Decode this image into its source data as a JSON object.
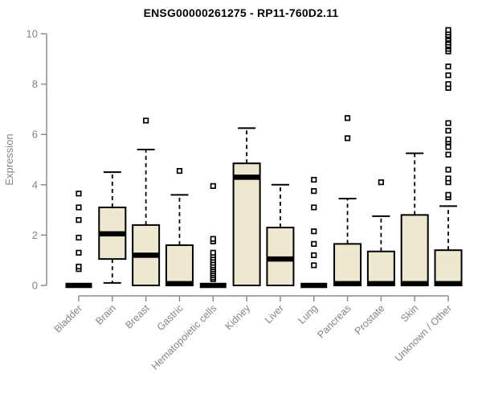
{
  "title": "ENSG00000261275 - RP11-760D2.11",
  "colors": {
    "box_fill": "#EDE8D0",
    "box_stroke": "#000000",
    "median": "#000000",
    "axis": "#8C8C8C",
    "axis_text": "#848484",
    "background": "#FFFFFF"
  },
  "chart_data": {
    "type": "boxplot",
    "title": "ENSG00000261275 - RP11-760D2.11",
    "xlabel": "",
    "ylabel": "Expression",
    "ylim": [
      0,
      10
    ],
    "yticks": [
      0,
      2,
      4,
      6,
      8,
      10
    ],
    "grid": "off",
    "legend": "none",
    "categories": [
      "Bladder",
      "Brain",
      "Breast",
      "Gastric",
      "Hematopoietic cells",
      "Kidney",
      "Liver",
      "Lung",
      "Pancreas",
      "Prostate",
      "Skin",
      "Unknown / Other"
    ],
    "boxes": [
      {
        "category": "Bladder",
        "whisker_low": 0,
        "q1": 0,
        "median": 0,
        "q3": 0,
        "whisker_high": 0,
        "outliers": [
          0.65,
          0.75,
          1.3,
          1.9,
          2.6,
          3.1,
          3.65
        ]
      },
      {
        "category": "Brain",
        "whisker_low": 0.1,
        "q1": 1.05,
        "median": 2.05,
        "q3": 3.1,
        "whisker_high": 4.5,
        "outliers": []
      },
      {
        "category": "Breast",
        "whisker_low": 0,
        "q1": 0,
        "median": 1.2,
        "q3": 2.4,
        "whisker_high": 5.4,
        "outliers": [
          6.55
        ]
      },
      {
        "category": "Gastric",
        "whisker_low": 0,
        "q1": 0,
        "median": 0.07,
        "q3": 1.6,
        "whisker_high": 3.6,
        "outliers": [
          4.55
        ]
      },
      {
        "category": "Hematopoietic cells",
        "whisker_low": 0,
        "q1": 0,
        "median": 0,
        "q3": 0,
        "whisker_high": 0,
        "outliers": [
          0.25,
          0.32,
          0.4,
          0.48,
          0.56,
          0.64,
          0.72,
          0.8,
          0.9,
          1.0,
          1.1,
          1.2,
          1.3,
          1.75,
          1.85,
          3.95
        ]
      },
      {
        "category": "Kidney",
        "whisker_low": 0,
        "q1": 0,
        "median": 4.3,
        "q3": 4.85,
        "whisker_high": 6.25,
        "outliers": []
      },
      {
        "category": "Liver",
        "whisker_low": 0,
        "q1": 0,
        "median": 1.05,
        "q3": 2.3,
        "whisker_high": 4.0,
        "outliers": []
      },
      {
        "category": "Lung",
        "whisker_low": 0,
        "q1": 0,
        "median": 0,
        "q3": 0,
        "whisker_high": 0,
        "outliers": [
          0.8,
          1.2,
          1.65,
          2.15,
          3.1,
          3.75,
          4.2
        ]
      },
      {
        "category": "Pancreas",
        "whisker_low": 0,
        "q1": 0,
        "median": 0.07,
        "q3": 1.65,
        "whisker_high": 3.45,
        "outliers": [
          5.85,
          6.65
        ]
      },
      {
        "category": "Prostate",
        "whisker_low": 0,
        "q1": 0,
        "median": 0.07,
        "q3": 1.35,
        "whisker_high": 2.75,
        "outliers": [
          4.1
        ]
      },
      {
        "category": "Skin",
        "whisker_low": 0,
        "q1": 0,
        "median": 0.07,
        "q3": 2.8,
        "whisker_high": 5.25,
        "outliers": []
      },
      {
        "category": "Unknown / Other",
        "whisker_low": 0,
        "q1": 0,
        "median": 0.07,
        "q3": 1.4,
        "whisker_high": 3.15,
        "outliers": [
          3.5,
          3.6,
          4.1,
          4.25,
          4.6,
          5.2,
          5.5,
          5.7,
          5.8,
          6.15,
          6.45,
          7.85,
          8.0,
          8.35,
          8.7,
          9.3,
          9.4,
          9.5,
          9.55,
          9.65,
          9.75,
          9.8,
          9.9,
          9.95,
          10.05,
          10.15
        ]
      }
    ]
  }
}
